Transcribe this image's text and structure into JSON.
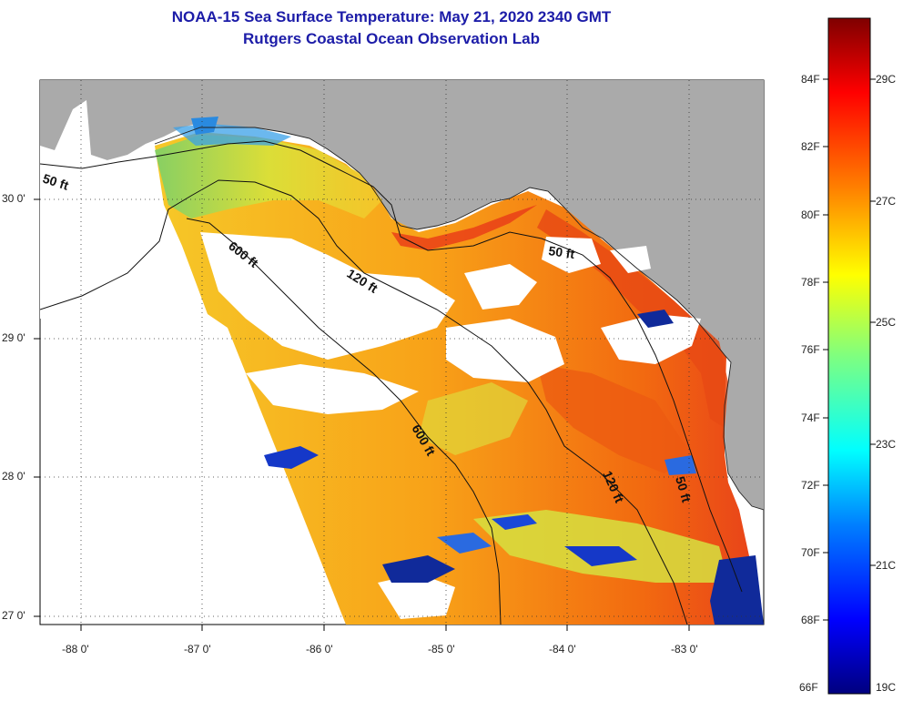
{
  "header": {
    "title": "NOAA-15 Sea Surface Temperature:  May 21, 2020 2340 GMT",
    "subtitle": "Rutgers Coastal Ocean Observation Lab"
  },
  "map": {
    "region": "Northeastern Gulf of Mexico / Florida Big Bend",
    "land_color": "#aaaaaa",
    "nodata_color": "#ffffff",
    "lon_ticks": [
      "-88 0'",
      "-87 0'",
      "-86 0'",
      "-85 0'",
      "-84 0'",
      "-83 0'"
    ],
    "lat_ticks": [
      "30 0'",
      "29 0'",
      "28 0'",
      "27 0'"
    ],
    "contours": [
      {
        "label": "50 ft"
      },
      {
        "label": "600 ft"
      },
      {
        "label": "120 ft"
      },
      {
        "label": "50 ft"
      },
      {
        "label": "600 ft"
      },
      {
        "label": "120 ft"
      },
      {
        "label": "50 ft"
      }
    ]
  },
  "colorbar": {
    "fahrenheit_labels": [
      "84F",
      "82F",
      "80F",
      "78F",
      "76F",
      "74F",
      "72F",
      "70F",
      "68F",
      "66F"
    ],
    "celsius_labels": [
      "29C",
      "27C",
      "25C",
      "23C",
      "21C",
      "19C"
    ],
    "min_c": 19,
    "max_c": 30,
    "colors": [
      "#00007f",
      "#0000ff",
      "#007fff",
      "#00ffff",
      "#7fff7f",
      "#ffff00",
      "#ff7f00",
      "#ff0000",
      "#7f0000"
    ]
  }
}
